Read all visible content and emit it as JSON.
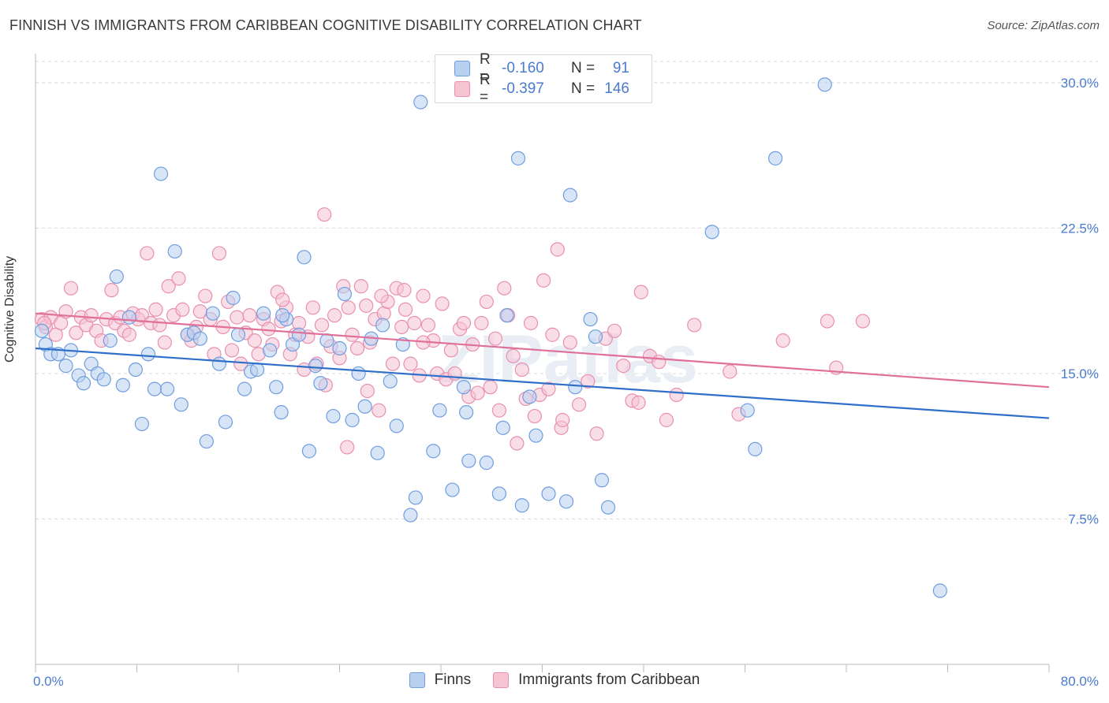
{
  "title": "FINNISH VS IMMIGRANTS FROM CARIBBEAN COGNITIVE DISABILITY CORRELATION CHART",
  "source": "Source: ZipAtlas.com",
  "watermark": "ZIPatlas",
  "legend": {
    "rows": [
      {
        "r_label": "R =",
        "r_value": "-0.160",
        "n_label": "N =",
        "n_value": "91",
        "color": "#7aa6e6"
      },
      {
        "r_label": "R =",
        "r_value": "-0.397",
        "n_label": "N =",
        "n_value": "146",
        "color": "#f08fb0"
      }
    ]
  },
  "colors": {
    "finns_fill": "#b8d0f0",
    "finns_stroke": "#6f9ee0",
    "finns_line": "#2f6fca",
    "carib_fill": "#f6c3d3",
    "carib_stroke": "#e990ae",
    "carib_line": "#e0709a",
    "tick_text": "#4a7bd0",
    "grid": "#d8d8d8"
  },
  "chart_data": {
    "type": "scatter",
    "title": "FINNISH VS IMMIGRANTS FROM CARIBBEAN COGNITIVE DISABILITY CORRELATION CHART",
    "ylabel": "Cognitive Disability",
    "xlabel": "",
    "xlim": [
      0,
      80
    ],
    "ylim": [
      0,
      31.5
    ],
    "x_tick_labels": [
      "0.0%",
      "80.0%"
    ],
    "y_ticks": [
      7.5,
      15.0,
      22.5,
      30.0
    ],
    "y_tick_labels": [
      "7.5%",
      "15.0%",
      "22.5%",
      "30.0%"
    ],
    "grid": "horizontal dashed",
    "legend_placement": "bottom-center",
    "series": [
      {
        "name": "Finns",
        "trend": {
          "x": [
            0,
            80
          ],
          "y": [
            16.3,
            12.7
          ]
        },
        "points": [
          [
            0.5,
            17.2
          ],
          [
            0.8,
            16.5
          ],
          [
            1.2,
            16.0
          ],
          [
            1.8,
            16.0
          ],
          [
            2.4,
            15.4
          ],
          [
            2.8,
            16.2
          ],
          [
            3.4,
            14.9
          ],
          [
            3.8,
            14.5
          ],
          [
            4.4,
            15.5
          ],
          [
            4.9,
            15.0
          ],
          [
            5.4,
            14.7
          ],
          [
            5.9,
            16.7
          ],
          [
            6.4,
            20.0
          ],
          [
            6.9,
            14.4
          ],
          [
            7.4,
            17.9
          ],
          [
            7.9,
            15.2
          ],
          [
            8.4,
            12.4
          ],
          [
            8.9,
            16.0
          ],
          [
            9.4,
            14.2
          ],
          [
            9.9,
            25.3
          ],
          [
            10.4,
            14.2
          ],
          [
            11.0,
            21.3
          ],
          [
            11.5,
            13.4
          ],
          [
            12.0,
            17.0
          ],
          [
            12.5,
            17.1
          ],
          [
            13.0,
            16.8
          ],
          [
            13.5,
            11.5
          ],
          [
            14.0,
            18.1
          ],
          [
            14.5,
            15.5
          ],
          [
            15.0,
            12.5
          ],
          [
            15.6,
            18.9
          ],
          [
            16.0,
            17.0
          ],
          [
            16.5,
            14.2
          ],
          [
            17.0,
            15.1
          ],
          [
            17.5,
            15.2
          ],
          [
            18.0,
            18.1
          ],
          [
            18.5,
            16.2
          ],
          [
            19.0,
            14.3
          ],
          [
            19.4,
            13.0
          ],
          [
            19.8,
            17.8
          ],
          [
            20.3,
            16.5
          ],
          [
            20.8,
            17.0
          ],
          [
            21.2,
            21.0
          ],
          [
            21.6,
            11.0
          ],
          [
            22.1,
            15.4
          ],
          [
            22.5,
            14.5
          ],
          [
            23.0,
            16.7
          ],
          [
            23.5,
            12.8
          ],
          [
            24.0,
            16.3
          ],
          [
            24.4,
            19.1
          ],
          [
            25.0,
            12.6
          ],
          [
            25.5,
            15.0
          ],
          [
            26.0,
            13.3
          ],
          [
            26.5,
            16.8
          ],
          [
            27.0,
            10.9
          ],
          [
            27.4,
            17.5
          ],
          [
            28.0,
            14.6
          ],
          [
            28.5,
            12.3
          ],
          [
            29.0,
            16.5
          ],
          [
            29.6,
            7.7
          ],
          [
            30.0,
            8.6
          ],
          [
            30.4,
            29.0
          ],
          [
            31.4,
            11.0
          ],
          [
            31.9,
            13.1
          ],
          [
            32.9,
            9.0
          ],
          [
            33.8,
            14.3
          ],
          [
            34.2,
            10.5
          ],
          [
            34.0,
            13.0
          ],
          [
            35.6,
            10.4
          ],
          [
            36.6,
            8.8
          ],
          [
            36.9,
            12.2
          ],
          [
            38.1,
            26.1
          ],
          [
            38.4,
            8.2
          ],
          [
            39.5,
            11.8
          ],
          [
            39.0,
            13.8
          ],
          [
            40.5,
            8.8
          ],
          [
            42.2,
            24.2
          ],
          [
            41.9,
            8.4
          ],
          [
            42.6,
            14.3
          ],
          [
            44.2,
            16.9
          ],
          [
            44.7,
            9.5
          ],
          [
            45.2,
            8.1
          ],
          [
            53.4,
            22.3
          ],
          [
            56.2,
            13.1
          ],
          [
            56.8,
            11.1
          ],
          [
            58.4,
            26.1
          ],
          [
            62.3,
            29.9
          ],
          [
            71.4,
            3.8
          ],
          [
            43.8,
            17.8
          ],
          [
            37.2,
            18.0
          ],
          [
            19.5,
            18.0
          ]
        ]
      },
      {
        "name": "Immigrants from Caribbean",
        "trend": {
          "x": [
            0,
            80
          ],
          "y": [
            18.1,
            14.3
          ]
        },
        "points": [
          [
            0.5,
            17.8
          ],
          [
            0.8,
            17.4
          ],
          [
            1.2,
            17.9
          ],
          [
            1.6,
            17.0
          ],
          [
            2.0,
            17.6
          ],
          [
            2.4,
            18.2
          ],
          [
            2.8,
            19.4
          ],
          [
            3.2,
            17.1
          ],
          [
            3.6,
            17.9
          ],
          [
            4.0,
            17.5
          ],
          [
            4.4,
            18.0
          ],
          [
            4.8,
            17.2
          ],
          [
            5.2,
            16.7
          ],
          [
            5.6,
            17.8
          ],
          [
            6.0,
            19.3
          ],
          [
            6.3,
            17.6
          ],
          [
            6.7,
            17.9
          ],
          [
            7.0,
            17.2
          ],
          [
            7.4,
            17.0
          ],
          [
            7.7,
            18.1
          ],
          [
            8.1,
            17.8
          ],
          [
            8.4,
            18.0
          ],
          [
            8.8,
            21.2
          ],
          [
            9.1,
            17.6
          ],
          [
            9.5,
            18.3
          ],
          [
            9.8,
            17.5
          ],
          [
            10.2,
            16.6
          ],
          [
            10.5,
            19.5
          ],
          [
            10.9,
            18.0
          ],
          [
            11.3,
            19.9
          ],
          [
            11.6,
            18.3
          ],
          [
            12.0,
            17.0
          ],
          [
            12.3,
            16.7
          ],
          [
            12.7,
            17.4
          ],
          [
            13.0,
            18.2
          ],
          [
            13.4,
            19.0
          ],
          [
            13.8,
            17.8
          ],
          [
            14.1,
            16.0
          ],
          [
            14.5,
            21.2
          ],
          [
            14.8,
            17.4
          ],
          [
            15.2,
            18.7
          ],
          [
            15.5,
            16.2
          ],
          [
            15.9,
            17.9
          ],
          [
            16.2,
            15.5
          ],
          [
            16.6,
            17.1
          ],
          [
            16.9,
            18.0
          ],
          [
            17.3,
            16.7
          ],
          [
            17.6,
            16.0
          ],
          [
            18.0,
            17.8
          ],
          [
            18.4,
            17.3
          ],
          [
            18.7,
            16.5
          ],
          [
            19.1,
            19.2
          ],
          [
            19.4,
            17.7
          ],
          [
            19.8,
            18.4
          ],
          [
            20.1,
            16.0
          ],
          [
            20.5,
            17.0
          ],
          [
            20.8,
            17.6
          ],
          [
            21.2,
            15.2
          ],
          [
            21.5,
            16.9
          ],
          [
            21.9,
            18.4
          ],
          [
            22.2,
            15.5
          ],
          [
            22.6,
            17.5
          ],
          [
            22.9,
            14.4
          ],
          [
            23.3,
            16.4
          ],
          [
            23.6,
            18.0
          ],
          [
            24.0,
            15.8
          ],
          [
            24.3,
            19.5
          ],
          [
            24.7,
            18.4
          ],
          [
            25.0,
            17.0
          ],
          [
            25.4,
            16.3
          ],
          [
            25.7,
            19.5
          ],
          [
            26.1,
            18.5
          ],
          [
            26.4,
            16.6
          ],
          [
            26.8,
            17.8
          ],
          [
            27.1,
            13.1
          ],
          [
            27.5,
            18.1
          ],
          [
            27.8,
            18.7
          ],
          [
            28.2,
            15.5
          ],
          [
            28.5,
            19.4
          ],
          [
            28.9,
            17.4
          ],
          [
            29.2,
            18.3
          ],
          [
            29.6,
            15.5
          ],
          [
            29.9,
            17.6
          ],
          [
            30.3,
            14.9
          ],
          [
            30.6,
            19.0
          ],
          [
            31.0,
            17.5
          ],
          [
            31.4,
            16.7
          ],
          [
            31.7,
            15.0
          ],
          [
            32.1,
            18.6
          ],
          [
            32.4,
            14.7
          ],
          [
            32.8,
            16.2
          ],
          [
            33.1,
            15.0
          ],
          [
            33.5,
            17.3
          ],
          [
            33.8,
            17.6
          ],
          [
            34.2,
            13.8
          ],
          [
            34.5,
            16.5
          ],
          [
            34.9,
            14.0
          ],
          [
            35.2,
            17.6
          ],
          [
            35.6,
            18.7
          ],
          [
            35.9,
            14.3
          ],
          [
            36.3,
            16.8
          ],
          [
            36.6,
            13.1
          ],
          [
            37.0,
            19.4
          ],
          [
            37.3,
            18.0
          ],
          [
            37.7,
            15.9
          ],
          [
            38.0,
            11.4
          ],
          [
            38.4,
            15.2
          ],
          [
            38.7,
            13.7
          ],
          [
            39.1,
            17.6
          ],
          [
            39.4,
            12.8
          ],
          [
            39.8,
            13.9
          ],
          [
            40.1,
            19.8
          ],
          [
            40.5,
            14.2
          ],
          [
            40.8,
            17.0
          ],
          [
            41.5,
            12.2
          ],
          [
            41.2,
            21.4
          ],
          [
            42.2,
            16.6
          ],
          [
            42.9,
            13.4
          ],
          [
            43.6,
            14.6
          ],
          [
            44.3,
            11.9
          ],
          [
            45.0,
            16.8
          ],
          [
            45.7,
            17.2
          ],
          [
            46.4,
            15.4
          ],
          [
            47.1,
            13.6
          ],
          [
            47.8,
            19.2
          ],
          [
            48.5,
            15.9
          ],
          [
            49.2,
            15.6
          ],
          [
            50.6,
            13.9
          ],
          [
            52.0,
            17.5
          ],
          [
            54.8,
            15.1
          ],
          [
            55.5,
            12.9
          ],
          [
            59.0,
            16.7
          ],
          [
            62.5,
            17.7
          ],
          [
            63.2,
            15.3
          ],
          [
            65.3,
            17.7
          ],
          [
            47.6,
            13.5
          ],
          [
            49.8,
            12.6
          ],
          [
            41.6,
            12.6
          ],
          [
            27.3,
            19.0
          ],
          [
            29.1,
            19.3
          ],
          [
            30.6,
            16.6
          ],
          [
            26.2,
            14.1
          ],
          [
            24.6,
            11.2
          ],
          [
            22.8,
            23.2
          ],
          [
            19.5,
            18.8
          ],
          [
            0.7,
            17.6
          ]
        ]
      }
    ]
  }
}
